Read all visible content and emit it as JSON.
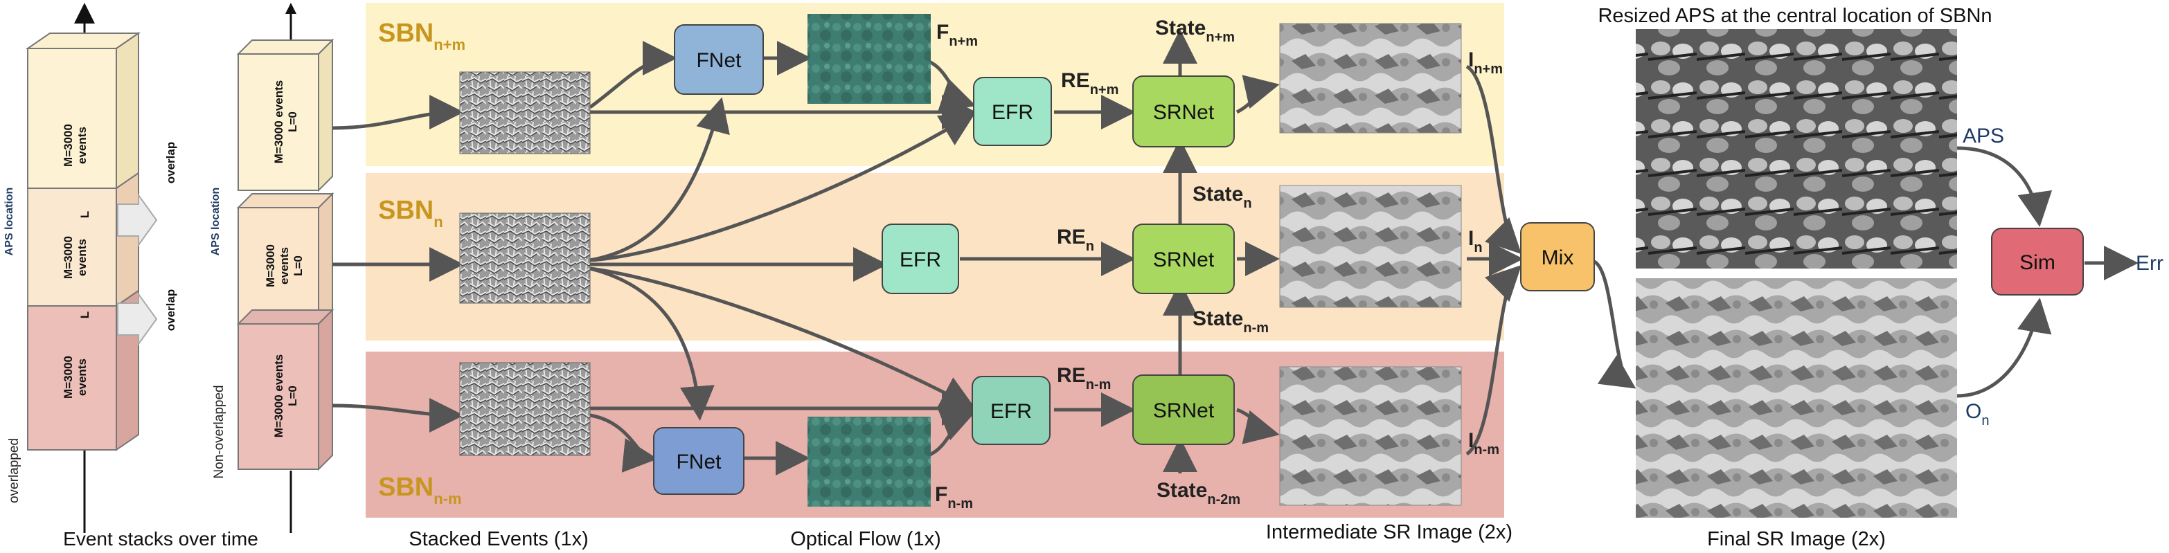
{
  "left": {
    "m_top": "M=3000\nevents",
    "m_mid": "M=3000\nevents",
    "m_bot": "M=3000\nevents",
    "aps_location": "APS location",
    "overlapped": "overlapped",
    "overlap1": "overlap",
    "overlap2": "overlap",
    "L1": "L",
    "L2": "L",
    "caption": "Event stacks over time"
  },
  "second": {
    "m_top": "M=3000 events\nL=0",
    "m_mid": "M=3000\nevents\nL=0",
    "m_bot": "M=3000 events\nL=0",
    "aps_location": "APS location",
    "non_overlapped": "Non-overlapped"
  },
  "bands": {
    "top": {
      "base": "SBN",
      "sub": "n+m"
    },
    "mid": {
      "base": "SBN",
      "sub": "n"
    },
    "bot": {
      "base": "SBN",
      "sub": "n-m"
    }
  },
  "blocks": {
    "fnet_top": "FNet",
    "fnet_bot": "FNet",
    "efr_top": "EFR",
    "efr_mid": "EFR",
    "efr_bot": "EFR",
    "srnet_top": "SRNet",
    "srnet_mid": "SRNet",
    "srnet_bot": "SRNet",
    "mix": "Mix",
    "sim": "Sim"
  },
  "labels": {
    "F_top": {
      "base": "F",
      "sub": "n+m"
    },
    "F_bot": {
      "base": "F",
      "sub": "n-m"
    },
    "RE_top": {
      "base": "RE",
      "sub": "n+m"
    },
    "RE_mid": {
      "base": "RE",
      "sub": "n"
    },
    "RE_bot": {
      "base": "RE",
      "sub": "n-m"
    },
    "State_top": {
      "base": "State",
      "sub": "n+m"
    },
    "State_mid": {
      "base": "State",
      "sub": "n"
    },
    "State_nm": {
      "base": "State",
      "sub": "n-m"
    },
    "State_bot": {
      "base": "State",
      "sub": "n-2m"
    },
    "I_top": {
      "base": "I",
      "sub": "n+m"
    },
    "I_mid": {
      "base": "I",
      "sub": "n"
    },
    "I_bot": {
      "base": "I",
      "sub": "n-m"
    },
    "APS": "APS",
    "O": {
      "base": "O",
      "sub": "n"
    },
    "Err": "Err"
  },
  "captions": {
    "resized": "Resized APS at the central location of SBNn",
    "stacked": "Stacked Events (1x)",
    "optical": "Optical Flow (1x)",
    "intermediate": "Intermediate SR Image (2x)",
    "final": "Final SR Image (2x)"
  },
  "colors": {
    "band_top": "#fdf2c8",
    "band_mid": "#fbe3c4",
    "band_bot": "#e8b2ac",
    "sbn_text": "#c8961e",
    "fnet": "#8fb4d8",
    "efr": "#9fe6c8",
    "srnet": "#a9d860",
    "mix": "#f7c26a",
    "sim": "#e06a76",
    "label_blue": "#1f3b63"
  }
}
